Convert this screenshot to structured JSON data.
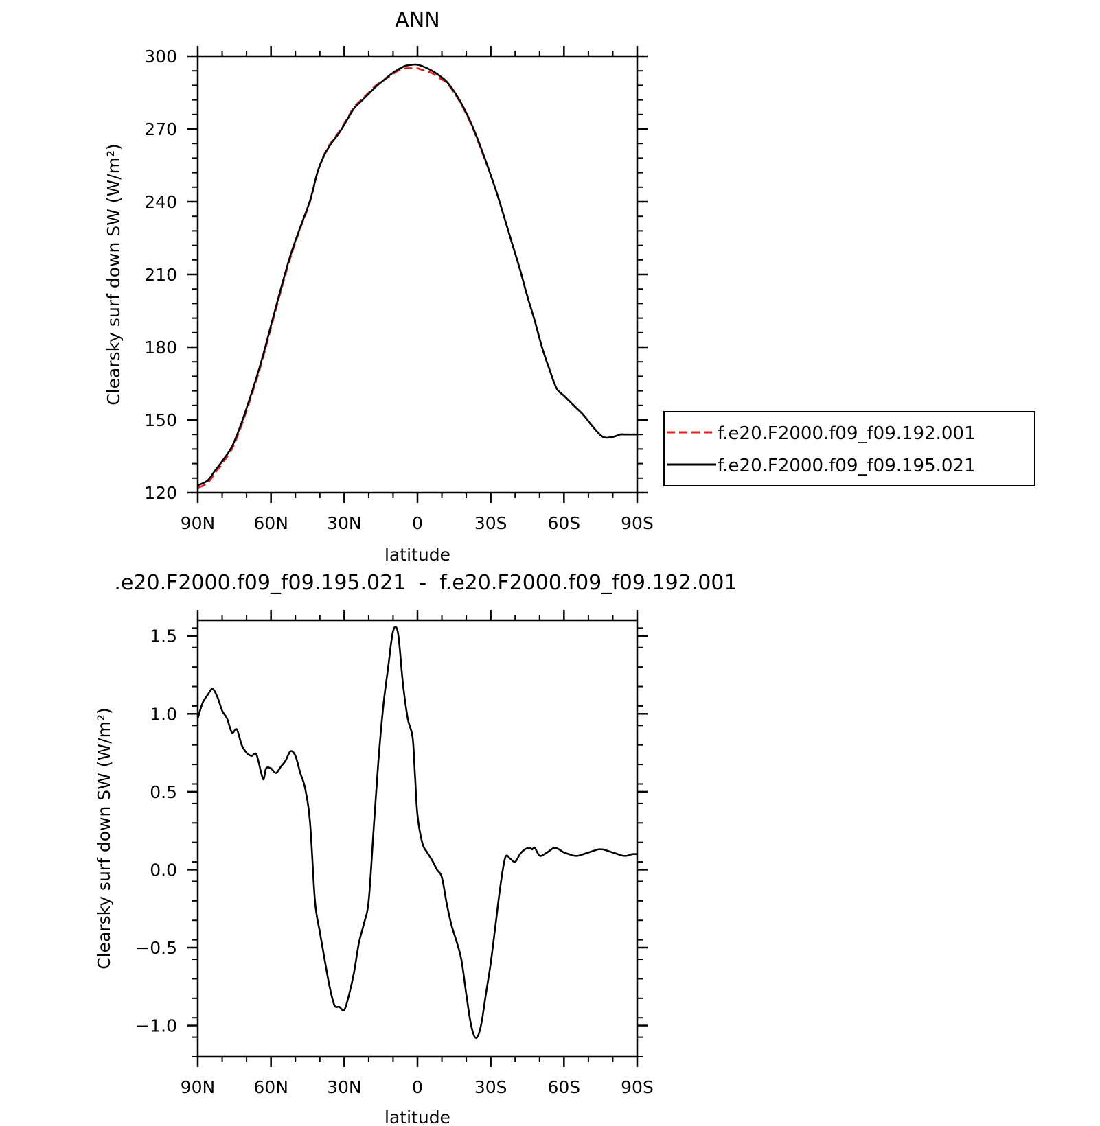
{
  "chart_data": [
    {
      "type": "line",
      "title": "ANN",
      "xlabel": "latitude",
      "ylabel": "Clearsky surf down SW (W/m²)",
      "xlim": [
        90,
        -90
      ],
      "ylim": [
        120,
        300
      ],
      "x_ticks": [
        90,
        60,
        30,
        0,
        -30,
        -60,
        -90
      ],
      "x_tick_labels": [
        "90N",
        "60N",
        "30N",
        "0",
        "30S",
        "60S",
        "90S"
      ],
      "y_ticks": [
        120,
        150,
        180,
        210,
        240,
        270,
        300
      ],
      "y_tick_labels": [
        "120",
        "150",
        "180",
        "210",
        "240",
        "270",
        "300"
      ],
      "grid": false,
      "legend_position": "right",
      "series": [
        {
          "name": "f.e20.F2000.f09_f09.192.001",
          "color": "#e41a1c",
          "dash": "dashed",
          "x": [
            90,
            86,
            83,
            80,
            76,
            72,
            68,
            64,
            60,
            56,
            52,
            48,
            44,
            41,
            38,
            35,
            32,
            29,
            26,
            23,
            20,
            17,
            14,
            11,
            8,
            5,
            2,
            0,
            -3,
            -6,
            -9,
            -12,
            -15,
            -18,
            -21,
            -24,
            -27,
            -30,
            -33,
            -36,
            -39,
            -42,
            -45,
            -48,
            -51,
            -54,
            -57,
            -60,
            -63,
            -65,
            -68,
            -72,
            -76,
            -80,
            -83,
            -85,
            -88,
            -90
          ],
          "y": [
            122,
            124,
            128,
            132,
            138,
            148,
            160,
            173,
            188,
            203,
            217,
            229,
            240,
            252,
            260,
            265,
            269,
            274,
            279,
            282,
            285,
            288,
            290,
            292,
            294,
            295,
            295,
            295,
            294,
            293,
            291,
            289,
            285,
            280,
            274,
            267,
            259,
            251,
            242,
            232,
            222,
            212,
            201,
            191,
            180,
            171,
            163,
            160,
            157,
            155,
            152,
            147,
            143,
            143,
            144,
            144,
            144,
            144
          ]
        },
        {
          "name": "f.e20.F2000.f09_f09.195.021",
          "color": "#000000",
          "dash": "solid",
          "x": [
            90,
            86,
            83,
            80,
            76,
            72,
            68,
            64,
            60,
            56,
            52,
            48,
            44,
            41,
            38,
            35,
            32,
            29,
            26,
            23,
            20,
            17,
            14,
            11,
            8,
            5,
            2,
            0,
            -3,
            -6,
            -9,
            -12,
            -15,
            -18,
            -21,
            -24,
            -27,
            -30,
            -33,
            -36,
            -39,
            -42,
            -45,
            -48,
            -51,
            -54,
            -57,
            -60,
            -63,
            -65,
            -68,
            -72,
            -76,
            -80,
            -83,
            -85,
            -88,
            -90
          ],
          "y": [
            123,
            125,
            129,
            133,
            139,
            149,
            161,
            174,
            189,
            204,
            218,
            229.5,
            240.5,
            252,
            259.5,
            264.5,
            268.5,
            273.5,
            278.5,
            281.5,
            284.5,
            287.5,
            290,
            292.5,
            294.5,
            296,
            296.5,
            296.5,
            295.5,
            294,
            292,
            289.5,
            285.5,
            280.5,
            274.5,
            267.5,
            259.5,
            251,
            242,
            232,
            222,
            212,
            201,
            191,
            180,
            171,
            163,
            160,
            157,
            155,
            152,
            147,
            143,
            143,
            144,
            144,
            144,
            144
          ]
        }
      ]
    },
    {
      "type": "line",
      "title": ".e20.F2000.f09_f09.195.021  -  f.e20.F2000.f09_f09.192.001",
      "xlabel": "latitude",
      "ylabel": "Clearsky surf down SW (W/m²)",
      "xlim": [
        90,
        -90
      ],
      "ylim": [
        -1.2,
        1.6
      ],
      "x_ticks": [
        90,
        60,
        30,
        0,
        -30,
        -60,
        -90
      ],
      "x_tick_labels": [
        "90N",
        "60N",
        "30N",
        "0",
        "30S",
        "60S",
        "90S"
      ],
      "y_ticks": [
        -1.0,
        -0.5,
        0.0,
        0.5,
        1.0,
        1.5
      ],
      "y_tick_labels": [
        "−1.0",
        "−0.5",
        "0.0",
        "0.5",
        "1.0",
        "1.5"
      ],
      "grid": false,
      "series": [
        {
          "color": "#000000",
          "dash": "solid",
          "x": [
            90,
            88,
            86,
            84,
            82,
            80,
            78,
            76,
            74,
            72,
            70,
            68,
            66,
            64,
            63,
            62,
            60,
            58,
            56,
            54,
            52,
            50,
            48,
            46,
            44,
            42,
            40,
            38,
            36,
            34,
            32,
            30,
            28,
            26,
            24,
            22,
            20,
            18,
            16,
            14,
            12,
            10,
            8,
            6,
            4,
            2,
            1,
            0,
            -2,
            -4,
            -6,
            -8,
            -10,
            -12,
            -14,
            -16,
            -18,
            -20,
            -22,
            -24,
            -26,
            -28,
            -30,
            -32,
            -34,
            -36,
            -38,
            -40,
            -42,
            -44,
            -46,
            -47,
            -48,
            -50,
            -52,
            -54,
            -56,
            -58,
            -60,
            -62,
            -64,
            -66,
            -68,
            -70,
            -72,
            -74,
            -76,
            -78,
            -80,
            -82,
            -84,
            -86,
            -88,
            -90
          ],
          "y": [
            0.97,
            1.07,
            1.12,
            1.16,
            1.11,
            1.02,
            0.97,
            0.88,
            0.9,
            0.8,
            0.75,
            0.73,
            0.74,
            0.62,
            0.58,
            0.65,
            0.65,
            0.62,
            0.66,
            0.7,
            0.76,
            0.73,
            0.62,
            0.52,
            0.3,
            -0.2,
            -0.4,
            -0.58,
            -0.75,
            -0.87,
            -0.88,
            -0.9,
            -0.8,
            -0.66,
            -0.47,
            -0.35,
            -0.2,
            0.25,
            0.7,
            1.05,
            1.3,
            1.53,
            1.52,
            1.2,
            0.97,
            0.85,
            0.6,
            0.35,
            0.17,
            0.11,
            0.06,
            0.0,
            -0.05,
            -0.22,
            -0.36,
            -0.46,
            -0.58,
            -0.8,
            -1.0,
            -1.08,
            -1.0,
            -0.8,
            -0.6,
            -0.35,
            -0.1,
            0.08,
            0.07,
            0.05,
            0.1,
            0.13,
            0.14,
            0.13,
            0.14,
            0.09,
            0.1,
            0.12,
            0.14,
            0.13,
            0.11,
            0.1,
            0.09,
            0.09,
            0.1,
            0.11,
            0.12,
            0.13,
            0.13,
            0.12,
            0.11,
            0.1,
            0.09,
            0.09,
            0.1,
            0.1
          ]
        }
      ]
    }
  ]
}
